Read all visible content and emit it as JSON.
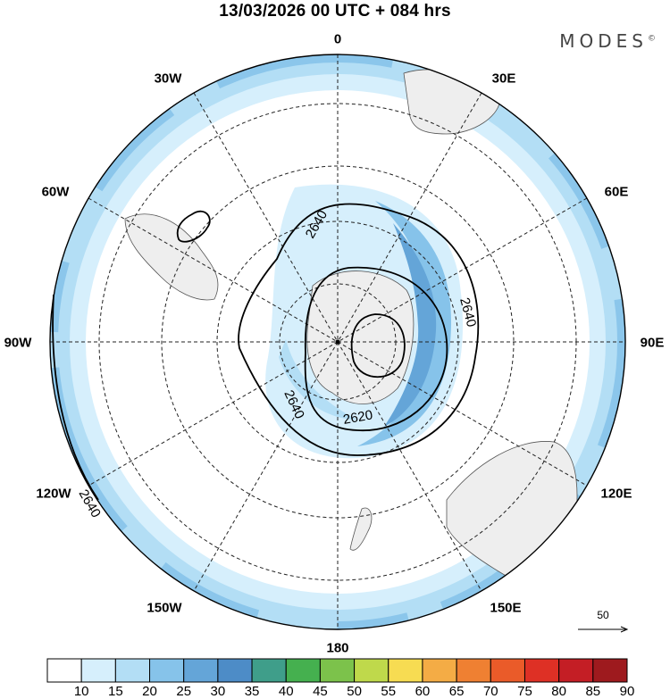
{
  "title": "13/03/2026  00 UTC  + 084 hrs",
  "brand": "MODES",
  "brand_mark": "©",
  "longitude_labels": [
    "0",
    "30E",
    "60E",
    "90E",
    "120E",
    "150E",
    "180",
    "150W",
    "120W",
    "90W",
    "60W",
    "30W"
  ],
  "contour_labels": [
    "2640",
    "2640",
    "2640",
    "2620",
    "2640"
  ],
  "vector_reference": "50",
  "colorbar": {
    "labels": [
      "10",
      "15",
      "20",
      "25",
      "30",
      "35",
      "40",
      "45",
      "50",
      "55",
      "60",
      "65",
      "70",
      "75",
      "80",
      "85",
      "90"
    ],
    "colors": [
      "#ffffff",
      "#d6effc",
      "#b3def5",
      "#86c3ea",
      "#64a5d8",
      "#4d8cc7",
      "#3f9e8a",
      "#45b04f",
      "#7cc24b",
      "#bfd94b",
      "#f7dc52",
      "#f4ac45",
      "#ef8032",
      "#ea5b29",
      "#de3025",
      "#c41e25",
      "#9e1a1e"
    ]
  },
  "colors": {
    "land": "#eeeeee",
    "coast": "#555555",
    "grid": "#222222",
    "contour": "#000000"
  }
}
